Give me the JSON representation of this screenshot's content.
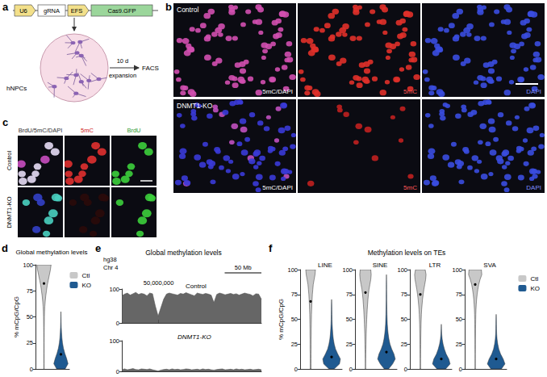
{
  "figure": {
    "a": {
      "letter": "a",
      "plasmid": [
        "U6",
        "gRNA",
        "EFS",
        "Cas9.GFP"
      ],
      "cells": "hNPCs",
      "step": [
        "10 d",
        "expansion"
      ],
      "end": "FACS"
    },
    "b": {
      "letter": "b",
      "rows": [
        {
          "label": "Control",
          "images": [
            "5mC/DAPI",
            "5mC",
            "DAPI"
          ]
        },
        {
          "label": "DNMT1-KO",
          "images": [
            "5mC/DAPI",
            "5mC",
            "DAPI"
          ]
        }
      ]
    },
    "c": {
      "letter": "c",
      "columns": [
        "BrdU/5mC/DAPI",
        "5mC",
        "BrdU"
      ],
      "rows": [
        "Control",
        "DNMT1-KO"
      ]
    }
  },
  "chart_data": [
    {
      "panel": "d",
      "type": "violin",
      "title": "Global methylation levels",
      "ylabel": "% mCpG/CpG",
      "ylim": [
        0,
        100
      ],
      "yticks": [
        0,
        25,
        50,
        75,
        100
      ],
      "grid": false,
      "tick_labels": "y",
      "legend": "top-right",
      "levels": [
        0,
        5,
        10,
        15,
        20,
        25,
        30,
        35,
        40,
        45,
        50,
        55,
        60,
        65,
        70,
        75,
        80,
        85,
        90,
        95,
        100
      ],
      "series": [
        {
          "name": "Ctl",
          "color": "#c8c8c8",
          "mean": 82,
          "density": [
            0.02,
            0.02,
            0.02,
            0.02,
            0.02,
            0.02,
            0.03,
            0.03,
            0.04,
            0.05,
            0.06,
            0.08,
            0.12,
            0.18,
            0.25,
            0.35,
            0.45,
            0.6,
            0.75,
            0.9,
            1.0
          ]
        },
        {
          "name": "KO",
          "color": "#1f5a91",
          "mean": 14,
          "density": [
            0.6,
            1.0,
            0.8,
            0.55,
            0.35,
            0.22,
            0.14,
            0.09,
            0.05,
            0.03,
            0.02,
            0,
            0,
            0,
            0,
            0,
            0,
            0,
            0,
            0,
            0
          ]
        }
      ]
    },
    {
      "panel": "e",
      "type": "area",
      "title": "Global methylation levels",
      "annotations": [
        "hg38",
        "Chr 4"
      ],
      "x": [
        0,
        3800000,
        7600000,
        11400000,
        15200000,
        19000000,
        22800000,
        26600000,
        30400000,
        34200000,
        38000000,
        41800000,
        45600000,
        49400000,
        53200000,
        57000000,
        60800000,
        64600000,
        68400000,
        72200000,
        76000000,
        79800000,
        83600000,
        87400000,
        91200000,
        95000000,
        98800000,
        102600000,
        106400000,
        110200000,
        114000000,
        117800000,
        121600000,
        125400000,
        129200000,
        133000000,
        136800000,
        140600000,
        144400000,
        148200000,
        152000000,
        155800000,
        159600000,
        163400000,
        167200000,
        171000000,
        174800000,
        178600000,
        182400000,
        186200000,
        190000000
      ],
      "xlim": [
        0,
        190000000
      ],
      "xticks": [
        {
          "value": 50000000,
          "label": "50,000,000"
        }
      ],
      "ylim": [
        0,
        100
      ],
      "yticks": [
        0,
        100
      ],
      "grid": false,
      "scale_bar": {
        "label": "50 Mb",
        "length": 50000000
      },
      "series": [
        {
          "name": "Control",
          "color": "#555555",
          "values": [
            80,
            85,
            88,
            82,
            86,
            90,
            84,
            87,
            85,
            80,
            88,
            86,
            50,
            20,
            45,
            70,
            85,
            88,
            86,
            84,
            82,
            87,
            85,
            89,
            86,
            83,
            80,
            88,
            86,
            84,
            87,
            85,
            82,
            60,
            84,
            88,
            86,
            83,
            85,
            87,
            84,
            86,
            82,
            85,
            88,
            86,
            84,
            80,
            86,
            85,
            70
          ]
        },
        {
          "name": "DNMT1-KO",
          "color": "#555555",
          "values": [
            6,
            8,
            5,
            7,
            9,
            6,
            5,
            8,
            7,
            6,
            8,
            5,
            3,
            1,
            4,
            6,
            7,
            5,
            8,
            6,
            7,
            5,
            6,
            8,
            7,
            5,
            6,
            7,
            5,
            8,
            6,
            7,
            5,
            4,
            6,
            7,
            8,
            5,
            6,
            7,
            5,
            8,
            6,
            7,
            5,
            6,
            7,
            5,
            6,
            7,
            5
          ]
        }
      ]
    },
    {
      "panel": "f",
      "type": "violin",
      "title": "Methylation levels on TEs",
      "ylabel": "% mCpG/CpG",
      "ylim": [
        0,
        100
      ],
      "yticks": [
        0,
        25,
        50,
        75,
        100
      ],
      "grid": false,
      "tick_labels": "y",
      "legend": "top-right",
      "levels": [
        0,
        5,
        10,
        15,
        20,
        25,
        30,
        35,
        40,
        45,
        50,
        55,
        60,
        65,
        70,
        75,
        80,
        85,
        90,
        95,
        100
      ],
      "panels": [
        {
          "title": "LINE",
          "series": [
            {
              "name": "Ctl",
              "color": "#c8c8c8",
              "mean": 68,
              "density": [
                0.05,
                0.05,
                0.05,
                0.05,
                0.06,
                0.06,
                0.06,
                0.07,
                0.07,
                0.08,
                0.09,
                0.1,
                0.12,
                0.14,
                0.17,
                0.2,
                0.25,
                0.3,
                0.4,
                0.5,
                0.55
              ]
            },
            {
              "name": "KO",
              "color": "#1f5a91",
              "mean": 12,
              "density": [
                0.3,
                0.9,
                1.0,
                0.7,
                0.45,
                0.3,
                0.2,
                0.14,
                0.1,
                0.07,
                0.05,
                0.04,
                0.03,
                0.02,
                0,
                0,
                0,
                0,
                0,
                0,
                0
              ]
            }
          ]
        },
        {
          "title": "SINE",
          "series": [
            {
              "name": "Ctl",
              "color": "#c8c8c8",
              "mean": 77,
              "density": [
                0.02,
                0.02,
                0.03,
                0.04,
                0.05,
                0.06,
                0.07,
                0.08,
                0.1,
                0.12,
                0.14,
                0.17,
                0.2,
                0.24,
                0.28,
                0.33,
                0.4,
                0.5,
                0.6,
                0.65,
                0.6
              ]
            },
            {
              "name": "KO",
              "color": "#1f5a91",
              "mean": 17,
              "density": [
                0.25,
                0.7,
                1.0,
                0.85,
                0.6,
                0.4,
                0.28,
                0.2,
                0.14,
                0.1,
                0.08,
                0.06,
                0.05,
                0.04,
                0.03,
                0.03,
                0.02,
                0.02,
                0.01,
                0,
                0
              ]
            }
          ]
        },
        {
          "title": "LTR",
          "series": [
            {
              "name": "Ctl",
              "color": "#c8c8c8",
              "mean": 75,
              "density": [
                0.03,
                0.03,
                0.03,
                0.04,
                0.04,
                0.05,
                0.05,
                0.06,
                0.07,
                0.08,
                0.1,
                0.12,
                0.15,
                0.2,
                0.25,
                0.32,
                0.4,
                0.5,
                0.6,
                0.65,
                0.55
              ]
            },
            {
              "name": "KO",
              "color": "#1f5a91",
              "mean": 10,
              "density": [
                0.5,
                1.0,
                0.85,
                0.55,
                0.35,
                0.2,
                0.1,
                0.05,
                0.02,
                0,
                0,
                0,
                0,
                0,
                0,
                0,
                0,
                0,
                0,
                0,
                0
              ]
            }
          ]
        },
        {
          "title": "SVA",
          "series": [
            {
              "name": "Ctl",
              "color": "#c8c8c8",
              "mean": 85,
              "density": [
                0.02,
                0.02,
                0.02,
                0.02,
                0.03,
                0.03,
                0.03,
                0.04,
                0.04,
                0.05,
                0.06,
                0.07,
                0.09,
                0.12,
                0.16,
                0.22,
                0.3,
                0.4,
                0.55,
                0.75,
                0.7
              ]
            },
            {
              "name": "KO",
              "color": "#1f5a91",
              "mean": 10,
              "density": [
                0.6,
                1.0,
                0.8,
                0.5,
                0.3,
                0.18,
                0.1,
                0.06,
                0.04,
                0.03,
                0.02,
                0,
                0,
                0,
                0,
                0,
                0,
                0,
                0,
                0,
                0
              ]
            }
          ]
        }
      ]
    }
  ]
}
